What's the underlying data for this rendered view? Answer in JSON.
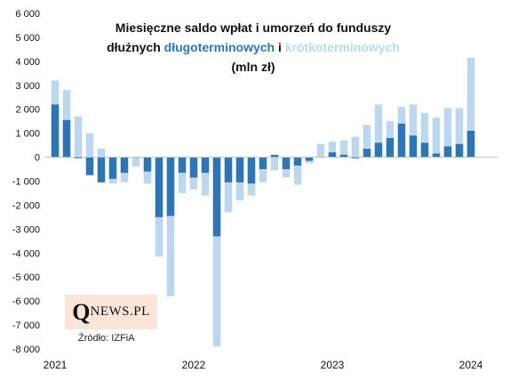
{
  "title": {
    "line1": "Miesięczne saldo wpłat i umorzeń do funduszy",
    "line2_prefix": "dłużnych",
    "line2_dark": "długoterminowych",
    "line2_mid": "i",
    "line2_light": "krótkoterminowych",
    "line3": "(mln zł)"
  },
  "logo": {
    "big": "Q",
    "small": "NEWS.PL"
  },
  "source": "Źródło: IZFiA",
  "colors": {
    "long_term": "#2E75B6",
    "short_term": "#BDD7EE",
    "axis": "#BFBFBF",
    "text": "#111111",
    "logo_bg": "#FBE5D6"
  },
  "chart_data": {
    "type": "bar",
    "ylim": [
      -8000,
      6000
    ],
    "yticks": [
      -8000,
      -7000,
      -6000,
      -5000,
      -4000,
      -3000,
      -2000,
      -1000,
      0,
      1000,
      2000,
      3000,
      4000,
      5000,
      6000
    ],
    "ytick_labels": [
      "-8 000",
      "-7 000",
      "-6 000",
      "-5 000",
      "-4 000",
      "-3 000",
      "-2 000",
      "-1 000",
      "0",
      "1 000",
      "2 000",
      "3 000",
      "4 000",
      "5 000",
      "6 000"
    ],
    "xtick_labels": [
      {
        "label": "2021",
        "month_index": 0
      },
      {
        "label": "2022",
        "month_index": 12
      },
      {
        "label": "2023",
        "month_index": 24
      },
      {
        "label": "2024",
        "month_index": 36
      }
    ],
    "months": 37,
    "grid": false,
    "series": [
      {
        "key": "long_term",
        "values": [
          2200,
          1550,
          -50,
          -750,
          -1050,
          -900,
          -650,
          0,
          -600,
          -2500,
          -2450,
          -650,
          -850,
          -650,
          -3300,
          -1050,
          -1050,
          -1100,
          -500,
          100,
          -500,
          -350,
          -150,
          0,
          200,
          100,
          -50,
          350,
          600,
          800,
          1400,
          900,
          600,
          150,
          450,
          550,
          1100
        ]
      },
      {
        "key": "short_term",
        "values": [
          3200,
          2800,
          1700,
          1000,
          350,
          -1100,
          -1050,
          -400,
          -1100,
          -4150,
          -5800,
          -1500,
          -1350,
          -1600,
          -7900,
          -2300,
          -1800,
          -1600,
          -1050,
          -550,
          -850,
          -1150,
          -250,
          550,
          650,
          700,
          850,
          1350,
          2200,
          1500,
          2100,
          2200,
          1850,
          1650,
          2050,
          2050,
          4150
        ]
      }
    ]
  }
}
